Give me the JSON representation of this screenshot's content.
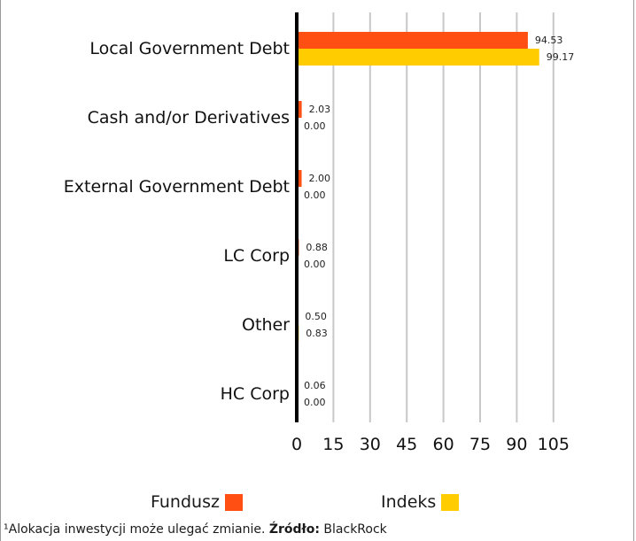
{
  "chart_data": {
    "type": "bar",
    "orientation": "horizontal",
    "categories": [
      "Local  Government Debt",
      "Cash and/or Derivatives",
      "External Government Debt",
      "LC Corp",
      "Other",
      "HC Corp"
    ],
    "series": [
      {
        "name": "Fundusz",
        "color": "#ff4f12",
        "values": [
          94.53,
          2.03,
          2.0,
          0.88,
          0.5,
          0.06
        ]
      },
      {
        "name": "Indeks",
        "color": "#ffcc00",
        "values": [
          99.17,
          0.0,
          0.0,
          0.0,
          0.83,
          0.0
        ]
      }
    ],
    "value_labels": [
      [
        "94.53",
        "2.03",
        "2.00",
        "0.88",
        "0.50",
        "0.06"
      ],
      [
        "99.17",
        "0.00",
        "0.00",
        "0.00",
        "0.83",
        "0.00"
      ]
    ],
    "x_ticks": [
      "0",
      "15",
      "30",
      "45",
      "60",
      "75",
      "90",
      "105"
    ],
    "xlim": [
      0,
      105
    ],
    "grid": "vertical",
    "grid_color": "#c8c8c8",
    "axis_color": "#000000",
    "legend_position": "bottom"
  },
  "legend": {
    "fund_label": "Fundusz",
    "index_label": "Indeks"
  },
  "footnote": {
    "prefix": "¹Alokacja inwestycji może ulegać zmianie. ",
    "source_label": "Źródło:",
    "source_value": " BlackRock"
  }
}
